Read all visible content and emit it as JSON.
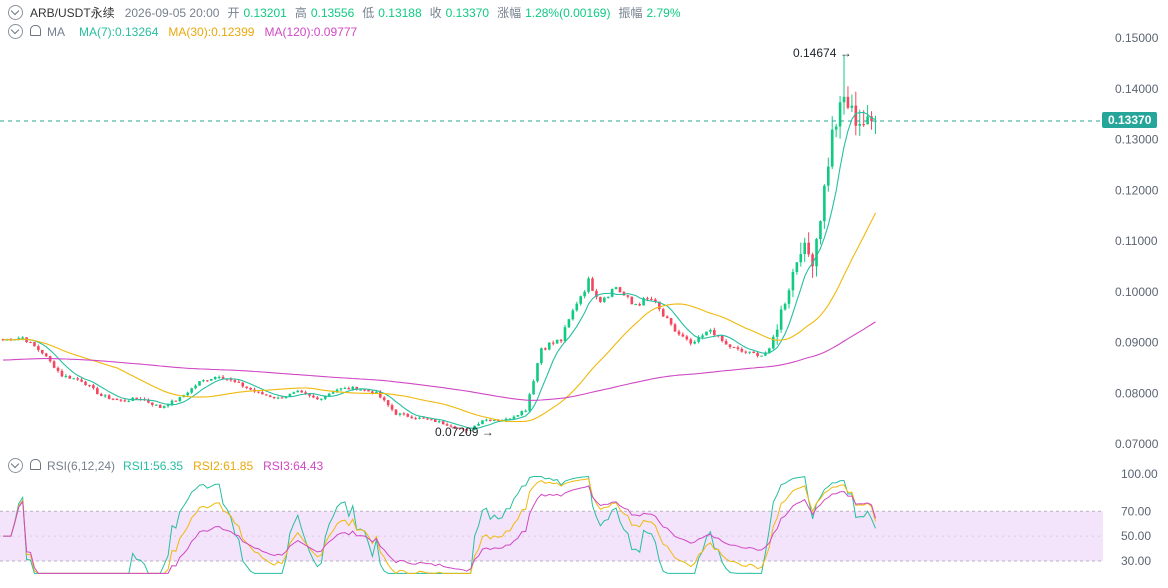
{
  "header": {
    "symbol": "ARB/USDT永续",
    "datetime": "2026-09-05 20:00",
    "open_label": "开",
    "open": "0.13201",
    "high_label": "高",
    "high": "0.13556",
    "low_label": "低",
    "low": "0.13188",
    "close_label": "收",
    "close": "0.13370",
    "change_label": "涨幅",
    "change": "1.28%(0.00169)",
    "amp_label": "振幅",
    "amp": "2.79%"
  },
  "ma_legend": {
    "title": "MA",
    "ma7": "MA(7):0.13264",
    "ma30": "MA(30):0.12399",
    "ma120": "MA(120):0.09777"
  },
  "rsi_legend": {
    "title": "RSI(6,12,24)",
    "rsi1": "RSI1:56.35",
    "rsi2": "RSI2:61.85",
    "rsi3": "RSI3:64.43"
  },
  "colors": {
    "up": "#0ecb81",
    "down": "#f6465d",
    "ma7": "#26bfa0",
    "ma30": "#f0b90b",
    "ma120": "#d048c4",
    "rsi_band": "#f3e3fb"
  },
  "annotations": {
    "high_label": "0.14674 →",
    "low_label": "0.07209 →"
  },
  "last_price_tag": "0.13370",
  "chart_data": {
    "type": "candlestick",
    "price_axis": {
      "ticks": [
        "0.15000",
        "0.14000",
        "0.13000",
        "0.12000",
        "0.11000",
        "0.10000",
        "0.09000",
        "0.08000",
        "0.07000"
      ],
      "ylim": [
        0.0675,
        0.1525
      ]
    },
    "rsi_axis": {
      "ticks": [
        "100.00",
        "70.00",
        "50.00",
        "30.00"
      ],
      "ylim": [
        15,
        105
      ],
      "band": [
        30,
        70
      ]
    },
    "price_anchors": [
      [
        0,
        0.0905
      ],
      [
        5,
        0.091
      ],
      [
        10,
        0.088
      ],
      [
        15,
        0.0835
      ],
      [
        20,
        0.0825
      ],
      [
        25,
        0.0795
      ],
      [
        30,
        0.0785
      ],
      [
        35,
        0.079
      ],
      [
        40,
        0.0772
      ],
      [
        45,
        0.079
      ],
      [
        50,
        0.0822
      ],
      [
        55,
        0.0835
      ],
      [
        60,
        0.0818
      ],
      [
        65,
        0.08
      ],
      [
        70,
        0.079
      ],
      [
        75,
        0.0802
      ],
      [
        80,
        0.0788
      ],
      [
        85,
        0.0808
      ],
      [
        90,
        0.081
      ],
      [
        95,
        0.08
      ],
      [
        100,
        0.076
      ],
      [
        105,
        0.0752
      ],
      [
        110,
        0.0745
      ],
      [
        115,
        0.0735
      ],
      [
        118,
        0.0724
      ],
      [
        122,
        0.0748
      ],
      [
        128,
        0.0748
      ],
      [
        133,
        0.0768
      ],
      [
        137,
        0.089
      ],
      [
        142,
        0.0905
      ],
      [
        146,
        0.098
      ],
      [
        149,
        0.102
      ],
      [
        152,
        0.0985
      ],
      [
        156,
        0.101
      ],
      [
        160,
        0.0975
      ],
      [
        165,
        0.0985
      ],
      [
        170,
        0.093
      ],
      [
        175,
        0.0895
      ],
      [
        180,
        0.0925
      ],
      [
        184,
        0.0895
      ],
      [
        188,
        0.0882
      ],
      [
        193,
        0.0875
      ],
      [
        195,
        0.0885
      ],
      [
        198,
        0.096
      ],
      [
        203,
        0.109
      ],
      [
        206,
        0.1065
      ],
      [
        208,
        0.115
      ],
      [
        211,
        0.131
      ],
      [
        214,
        0.138
      ],
      [
        217,
        0.134
      ],
      [
        220,
        0.133
      ],
      [
        222,
        0.1337
      ]
    ],
    "ma7_last": 0.13264,
    "ma30_last": 0.12399,
    "ma120_last": 0.09777,
    "rsi_last": {
      "rsi1": 56.35,
      "rsi2": 61.85,
      "rsi3": 64.43
    },
    "high_marker": 0.14674,
    "low_marker": 0.07209,
    "last_price": 0.1337
  }
}
